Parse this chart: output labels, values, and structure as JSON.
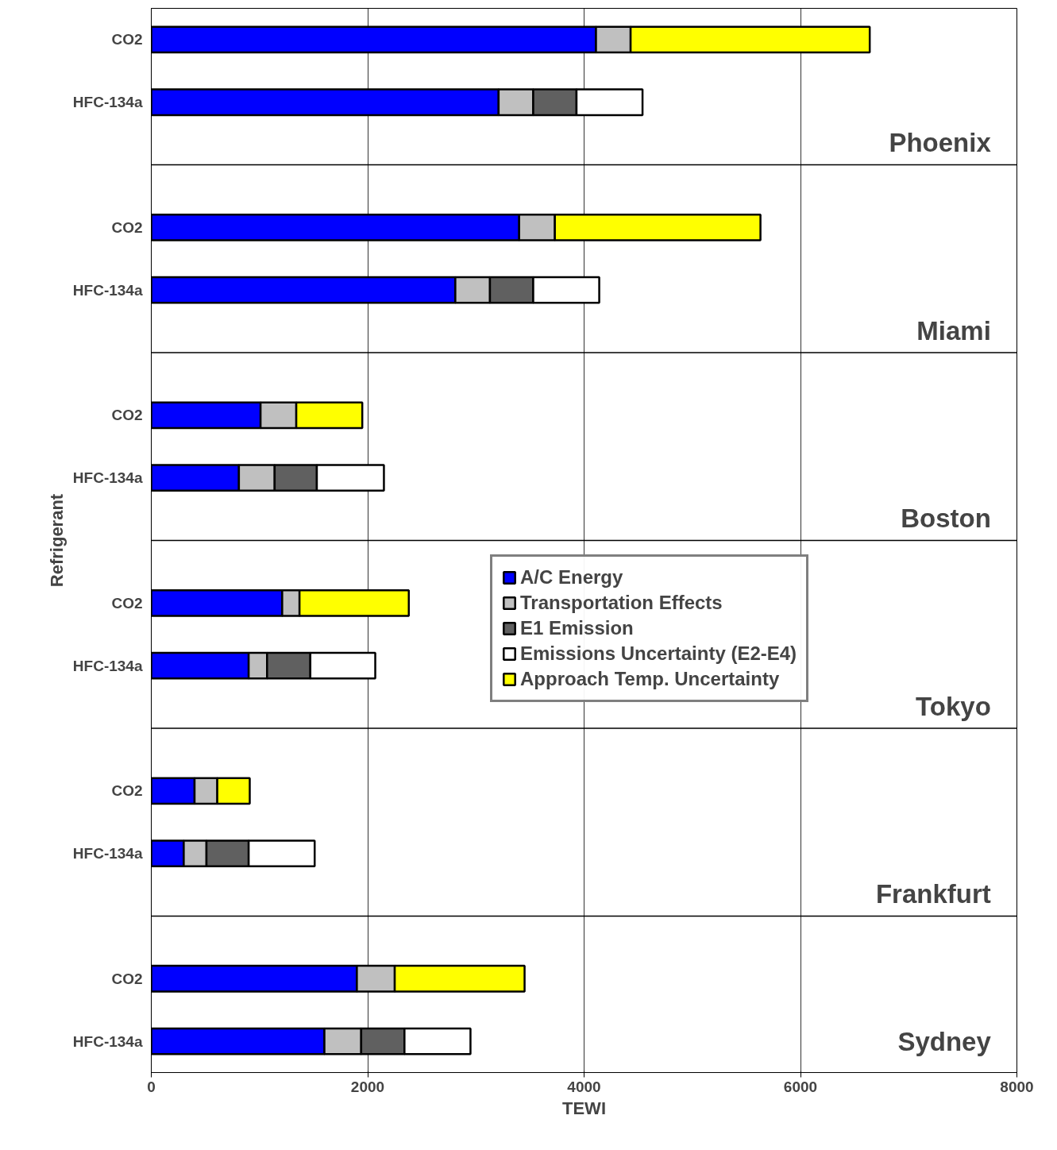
{
  "chart_data": {
    "type": "bar",
    "orientation": "horizontal",
    "stacked": true,
    "xlabel": "TEWI",
    "ylabel": "Refrigerant",
    "categories": [
      "CO2",
      "HFC-134a",
      null,
      "CO2",
      "HFC-134a",
      null,
      "CO2",
      "HFC-134a",
      null,
      "CO2",
      "HFC-134a",
      null,
      "CO2",
      "HFC-134a",
      null,
      "CO2",
      "HFC-134a"
    ],
    "series": [
      {
        "name": "A/C Energy",
        "color": "#0000ff",
        "values": [
          4110,
          3210,
          null,
          3400,
          2810,
          null,
          1010,
          810,
          null,
          1210,
          900,
          null,
          400,
          300,
          null,
          1900,
          1600
        ]
      },
      {
        "name": "Transportation Effects",
        "color": "#c0c0c0",
        "values": [
          320,
          320,
          null,
          330,
          320,
          null,
          330,
          330,
          null,
          160,
          170,
          null,
          210,
          210,
          null,
          350,
          340
        ]
      },
      {
        "name": "E1 Emission",
        "color": "#606060",
        "values": [
          null,
          400,
          null,
          null,
          400,
          null,
          null,
          390,
          null,
          null,
          400,
          null,
          null,
          390,
          null,
          null,
          400
        ]
      },
      {
        "name": "Emissions Uncertainty (E2-E4)",
        "color": "#ffffff",
        "values": [
          null,
          610,
          null,
          null,
          610,
          null,
          null,
          620,
          null,
          null,
          600,
          null,
          null,
          610,
          null,
          null,
          610
        ]
      },
      {
        "name": "Approach Temp. Uncertainty",
        "color": "#ffff00",
        "values": [
          2210,
          null,
          null,
          1900,
          null,
          null,
          610,
          null,
          null,
          1010,
          null,
          null,
          300,
          null,
          null,
          1200,
          null
        ]
      }
    ],
    "xlim": [
      0,
      8000
    ],
    "xticks": [
      0,
      2000,
      4000,
      6000,
      8000
    ],
    "grid": "x",
    "legend": "center",
    "annotations": [
      "Phoenix",
      "Miami",
      "Boston",
      "Tokyo",
      "Frankfurt",
      "Sydney"
    ]
  }
}
